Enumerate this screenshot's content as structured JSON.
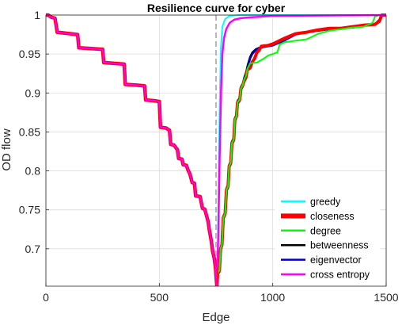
{
  "chart_data": {
    "type": "line",
    "title": "Resilience curve for cyber",
    "xlabel": "Edge",
    "ylabel": "OD flow",
    "xlim": [
      0,
      1500
    ],
    "ylim": [
      0.652,
      1.0
    ],
    "xticks": [
      0,
      500,
      1000,
      1500
    ],
    "xtick_labels": [
      "0",
      "500",
      "1000",
      "1500"
    ],
    "yticks": [
      0.7,
      0.75,
      0.8,
      0.85,
      0.9,
      0.95,
      1.0
    ],
    "ytick_labels": [
      "0.7",
      "0.75",
      "0.8",
      "0.85",
      "0.9",
      "0.95",
      "1"
    ],
    "grid": true,
    "legend_position": "bottom-right",
    "vertical_marker": {
      "x": 750,
      "style": "dashed",
      "color": "#a0a0a0"
    },
    "descent": [
      [
        0,
        1.0
      ],
      [
        10,
        1.0
      ],
      [
        25,
        0.997
      ],
      [
        40,
        0.996
      ],
      [
        50,
        0.978
      ],
      [
        80,
        0.977
      ],
      [
        110,
        0.976
      ],
      [
        140,
        0.975
      ],
      [
        145,
        0.958
      ],
      [
        200,
        0.957
      ],
      [
        250,
        0.956
      ],
      [
        255,
        0.939
      ],
      [
        300,
        0.938
      ],
      [
        345,
        0.937
      ],
      [
        350,
        0.911
      ],
      [
        400,
        0.91
      ],
      [
        435,
        0.909
      ],
      [
        440,
        0.891
      ],
      [
        480,
        0.89
      ],
      [
        500,
        0.889
      ],
      [
        505,
        0.856
      ],
      [
        530,
        0.855
      ],
      [
        545,
        0.852
      ],
      [
        550,
        0.834
      ],
      [
        565,
        0.833
      ],
      [
        575,
        0.829
      ],
      [
        580,
        0.827
      ],
      [
        585,
        0.816
      ],
      [
        600,
        0.815
      ],
      [
        605,
        0.808
      ],
      [
        620,
        0.807
      ],
      [
        625,
        0.802
      ],
      [
        635,
        0.796
      ],
      [
        645,
        0.785
      ],
      [
        655,
        0.784
      ],
      [
        660,
        0.768
      ],
      [
        680,
        0.767
      ],
      [
        690,
        0.752
      ],
      [
        700,
        0.751
      ],
      [
        715,
        0.735
      ],
      [
        720,
        0.725
      ],
      [
        728,
        0.712
      ],
      [
        735,
        0.697
      ],
      [
        742,
        0.688
      ],
      [
        748,
        0.675
      ],
      [
        752,
        0.658
      ],
      [
        754,
        0.652
      ]
    ],
    "series": [
      {
        "name": "greedy",
        "color": "#00ffff",
        "width": 2,
        "points": [
          [
            754,
            0.652
          ],
          [
            758,
            0.7
          ],
          [
            762,
            0.8
          ],
          [
            767,
            0.9
          ],
          [
            772,
            0.96
          ],
          [
            778,
            0.985
          ],
          [
            790,
            0.995
          ],
          [
            810,
            0.999
          ],
          [
            850,
            1.0
          ],
          [
            1500,
            1.0
          ]
        ]
      },
      {
        "name": "closeness",
        "color": "#ff0000",
        "width": 4,
        "points": [
          [
            754,
            0.652
          ],
          [
            758,
            0.67
          ],
          [
            765,
            0.672
          ],
          [
            770,
            0.7
          ],
          [
            776,
            0.705
          ],
          [
            782,
            0.74
          ],
          [
            790,
            0.745
          ],
          [
            796,
            0.776
          ],
          [
            803,
            0.78
          ],
          [
            808,
            0.806
          ],
          [
            815,
            0.81
          ],
          [
            820,
            0.836
          ],
          [
            828,
            0.84
          ],
          [
            833,
            0.866
          ],
          [
            840,
            0.87
          ],
          [
            845,
            0.888
          ],
          [
            855,
            0.892
          ],
          [
            860,
            0.906
          ],
          [
            868,
            0.91
          ],
          [
            875,
            0.916
          ],
          [
            882,
            0.92
          ],
          [
            888,
            0.93
          ],
          [
            900,
            0.932
          ],
          [
            910,
            0.94
          ],
          [
            920,
            0.944
          ],
          [
            930,
            0.952
          ],
          [
            940,
            0.955
          ],
          [
            950,
            0.96
          ],
          [
            980,
            0.961
          ],
          [
            1000,
            0.963
          ],
          [
            1050,
            0.97
          ],
          [
            1100,
            0.976
          ],
          [
            1150,
            0.978
          ],
          [
            1200,
            0.981
          ],
          [
            1250,
            0.983
          ],
          [
            1300,
            0.983
          ],
          [
            1350,
            0.985
          ],
          [
            1400,
            0.987
          ],
          [
            1450,
            0.988
          ],
          [
            1470,
            0.992
          ],
          [
            1480,
            1.0
          ],
          [
            1500,
            1.0
          ]
        ]
      },
      {
        "name": "degree",
        "color": "#00ff00",
        "width": 2,
        "points": [
          [
            754,
            0.652
          ],
          [
            758,
            0.67
          ],
          [
            765,
            0.672
          ],
          [
            770,
            0.7
          ],
          [
            776,
            0.705
          ],
          [
            782,
            0.74
          ],
          [
            790,
            0.745
          ],
          [
            796,
            0.776
          ],
          [
            803,
            0.78
          ],
          [
            808,
            0.806
          ],
          [
            815,
            0.81
          ],
          [
            820,
            0.836
          ],
          [
            828,
            0.84
          ],
          [
            833,
            0.866
          ],
          [
            840,
            0.87
          ],
          [
            845,
            0.888
          ],
          [
            855,
            0.892
          ],
          [
            860,
            0.906
          ],
          [
            868,
            0.91
          ],
          [
            875,
            0.918
          ],
          [
            882,
            0.922
          ],
          [
            890,
            0.932
          ],
          [
            900,
            0.938
          ],
          [
            930,
            0.939
          ],
          [
            960,
            0.944
          ],
          [
            980,
            0.948
          ],
          [
            1000,
            0.95
          ],
          [
            1020,
            0.952
          ],
          [
            1030,
            0.962
          ],
          [
            1050,
            0.965
          ],
          [
            1100,
            0.967
          ],
          [
            1150,
            0.969
          ],
          [
            1200,
            0.976
          ],
          [
            1250,
            0.98
          ],
          [
            1300,
            0.982
          ],
          [
            1350,
            0.984
          ],
          [
            1400,
            0.985
          ],
          [
            1425,
            0.988
          ],
          [
            1440,
            0.99
          ],
          [
            1450,
            0.998
          ],
          [
            1470,
            1.0
          ],
          [
            1500,
            1.0
          ]
        ]
      },
      {
        "name": "betweenness",
        "color": "#000000",
        "width": 2.5,
        "points": [
          [
            754,
            0.652
          ],
          [
            758,
            0.672
          ],
          [
            765,
            0.674
          ],
          [
            770,
            0.702
          ],
          [
            776,
            0.707
          ],
          [
            782,
            0.742
          ],
          [
            790,
            0.747
          ],
          [
            796,
            0.778
          ],
          [
            803,
            0.782
          ],
          [
            808,
            0.808
          ],
          [
            815,
            0.812
          ],
          [
            820,
            0.838
          ],
          [
            828,
            0.842
          ],
          [
            833,
            0.868
          ],
          [
            840,
            0.872
          ],
          [
            845,
            0.89
          ],
          [
            855,
            0.894
          ],
          [
            860,
            0.908
          ],
          [
            868,
            0.912
          ],
          [
            875,
            0.92
          ],
          [
            882,
            0.926
          ],
          [
            890,
            0.936
          ],
          [
            900,
            0.946
          ],
          [
            910,
            0.952
          ],
          [
            925,
            0.956
          ],
          [
            940,
            0.958
          ],
          [
            960,
            0.959
          ],
          [
            1000,
            0.961
          ],
          [
            1050,
            0.968
          ],
          [
            1100,
            0.976
          ],
          [
            1150,
            0.978
          ],
          [
            1200,
            0.98
          ],
          [
            1250,
            0.982
          ],
          [
            1300,
            0.983
          ],
          [
            1350,
            0.984
          ],
          [
            1400,
            0.986
          ],
          [
            1450,
            0.988
          ],
          [
            1470,
            0.994
          ],
          [
            1480,
            1.0
          ],
          [
            1500,
            1.0
          ]
        ]
      },
      {
        "name": "eigenvector",
        "color": "#0000cc",
        "width": 2.5,
        "points": [
          [
            754,
            0.652
          ],
          [
            758,
            0.668
          ],
          [
            765,
            0.67
          ],
          [
            770,
            0.698
          ],
          [
            776,
            0.703
          ],
          [
            782,
            0.738
          ],
          [
            790,
            0.743
          ],
          [
            796,
            0.774
          ],
          [
            803,
            0.778
          ],
          [
            808,
            0.804
          ],
          [
            815,
            0.808
          ],
          [
            820,
            0.834
          ],
          [
            828,
            0.838
          ],
          [
            833,
            0.864
          ],
          [
            840,
            0.868
          ],
          [
            845,
            0.886
          ],
          [
            855,
            0.89
          ],
          [
            860,
            0.904
          ],
          [
            868,
            0.908
          ],
          [
            875,
            0.916
          ],
          [
            882,
            0.922
          ],
          [
            890,
            0.932
          ],
          [
            900,
            0.944
          ],
          [
            910,
            0.95
          ],
          [
            925,
            0.955
          ],
          [
            940,
            0.958
          ],
          [
            960,
            0.959
          ],
          [
            1000,
            0.961
          ],
          [
            1050,
            0.967
          ],
          [
            1100,
            0.975
          ],
          [
            1150,
            0.978
          ],
          [
            1200,
            0.98
          ],
          [
            1250,
            0.982
          ],
          [
            1300,
            0.983
          ],
          [
            1350,
            0.984
          ],
          [
            1400,
            0.986
          ],
          [
            1450,
            0.988
          ],
          [
            1470,
            0.993
          ],
          [
            1480,
            1.0
          ],
          [
            1500,
            1.0
          ]
        ]
      },
      {
        "name": "cross entropy",
        "color": "#ff00ff",
        "width": 2.5,
        "points": [
          [
            754,
            0.652
          ],
          [
            760,
            0.72
          ],
          [
            766,
            0.82
          ],
          [
            772,
            0.9
          ],
          [
            778,
            0.95
          ],
          [
            785,
            0.97
          ],
          [
            795,
            0.982
          ],
          [
            810,
            0.99
          ],
          [
            830,
            0.994
          ],
          [
            860,
            0.996
          ],
          [
            900,
            0.997
          ],
          [
            950,
            0.998
          ],
          [
            1000,
            0.999
          ],
          [
            1500,
            1.0
          ]
        ]
      }
    ]
  }
}
